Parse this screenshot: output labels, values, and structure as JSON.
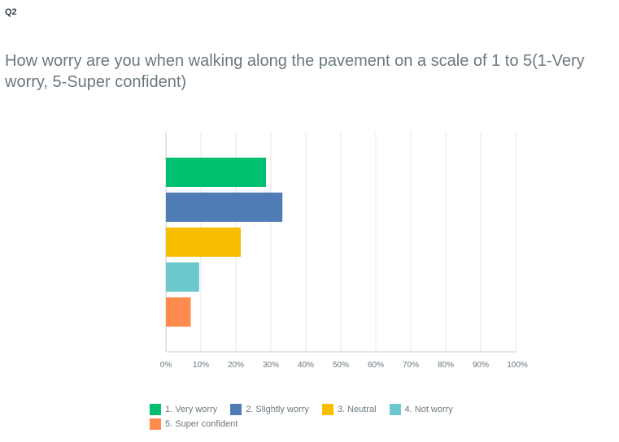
{
  "question_label": "Q2",
  "question_text": "How worry are you when walking along the pavement on a scale of 1 to 5(1-Very worry, 5-Super confident)",
  "chart_data": {
    "type": "bar",
    "orientation": "horizontal",
    "title": "",
    "xlabel": "",
    "ylabel": "",
    "xlim": [
      0,
      100
    ],
    "x_ticks": [
      "0%",
      "10%",
      "20%",
      "30%",
      "40%",
      "50%",
      "60%",
      "70%",
      "80%",
      "90%",
      "100%"
    ],
    "grid": true,
    "legend_position": "bottom",
    "categories": [
      "1. Very worry",
      "2. Slightly worry",
      "3. Neutral",
      "4. Not worry",
      "5. Super confident"
    ],
    "values": [
      28.6,
      33.3,
      21.4,
      9.5,
      7.1
    ],
    "colors": [
      "#00bf6f",
      "#507cb6",
      "#f9be00",
      "#6bc8cd",
      "#ff8b4f"
    ]
  }
}
